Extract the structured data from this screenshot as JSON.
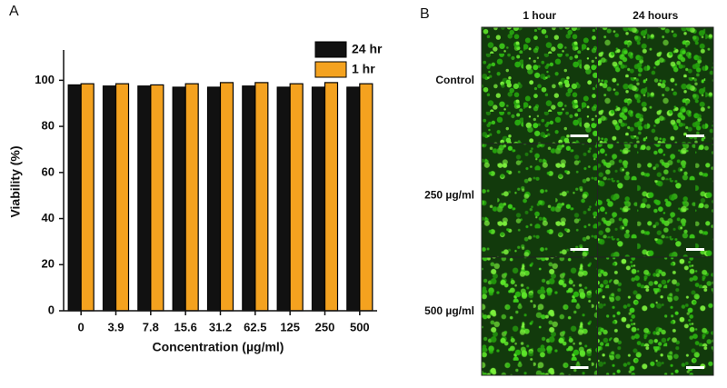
{
  "chart_data": {
    "type": "bar",
    "panel_label": "A",
    "x_label": "Concentration (µg/ml)",
    "y_label": "Viability (%)",
    "categories": [
      "0",
      "3.9",
      "7.8",
      "15.6",
      "31.2",
      "62.5",
      "125",
      "250",
      "500"
    ],
    "series": [
      {
        "name": "24 hr",
        "color": "#111111",
        "values": [
          98,
          97.5,
          97.5,
          97,
          97,
          97.5,
          97,
          97,
          97
        ]
      },
      {
        "name": "1 hr",
        "color": "#f4a21f",
        "values": [
          98.5,
          98.5,
          98,
          98.5,
          99,
          99,
          98.5,
          99,
          98.5
        ]
      }
    ],
    "ylim": [
      0,
      110
    ],
    "yticks": [
      0,
      20,
      40,
      60,
      80,
      100
    ],
    "grid": false,
    "legend": "upper right"
  },
  "image_panel": {
    "panel_label": "B",
    "columns": [
      "1 hour",
      "24 hours"
    ],
    "rows": [
      "Control",
      "250 µg/ml",
      "500 µg/ml"
    ]
  }
}
